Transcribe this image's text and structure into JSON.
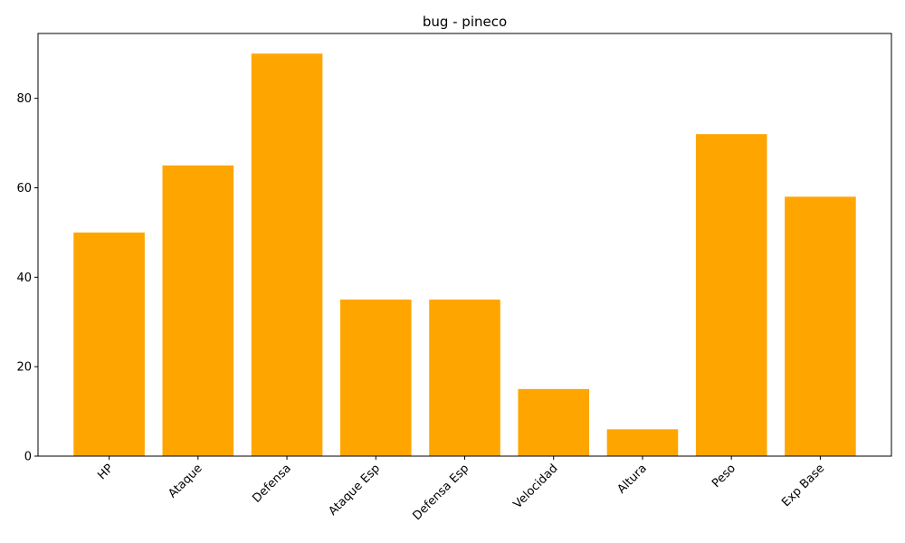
{
  "chart_data": {
    "type": "bar",
    "title": "bug - pineco",
    "xlabel": "",
    "ylabel": "",
    "categories": [
      "HP",
      "Ataque",
      "Defensa",
      "Ataque Esp",
      "Defensa Esp",
      "Velocidad",
      "Altura",
      "Peso",
      "Exp Base"
    ],
    "values": [
      50,
      65,
      90,
      35,
      35,
      15,
      6,
      72,
      58
    ],
    "ylim": [
      0,
      94.5
    ],
    "yticks": [
      0,
      20,
      40,
      60,
      80
    ],
    "grid": false,
    "bar_color": "#ffa500",
    "x_tick_rotation_deg": 45
  }
}
